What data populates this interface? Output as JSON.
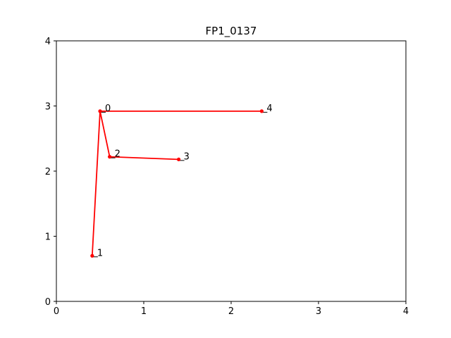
{
  "chart_data": {
    "type": "line",
    "title": "FP1_0137",
    "xlabel": "",
    "ylabel": "",
    "xlim": [
      0,
      4
    ],
    "ylim": [
      0,
      4
    ],
    "xticks": [
      "0",
      "1",
      "2",
      "3",
      "4"
    ],
    "yticks": [
      "0",
      "1",
      "2",
      "3",
      "4"
    ],
    "grid": false,
    "line_color": "#ff0000",
    "points": [
      {
        "label": "0",
        "x": 0.5,
        "y": 2.92
      },
      {
        "label": "1",
        "x": 0.41,
        "y": 0.7
      },
      {
        "label": "2",
        "x": 0.61,
        "y": 2.22
      },
      {
        "label": "3",
        "x": 1.4,
        "y": 2.18
      },
      {
        "label": "4",
        "x": 2.35,
        "y": 2.92
      }
    ],
    "segments": [
      [
        0,
        1
      ],
      [
        0,
        2
      ],
      [
        2,
        3
      ],
      [
        0,
        4
      ]
    ]
  }
}
